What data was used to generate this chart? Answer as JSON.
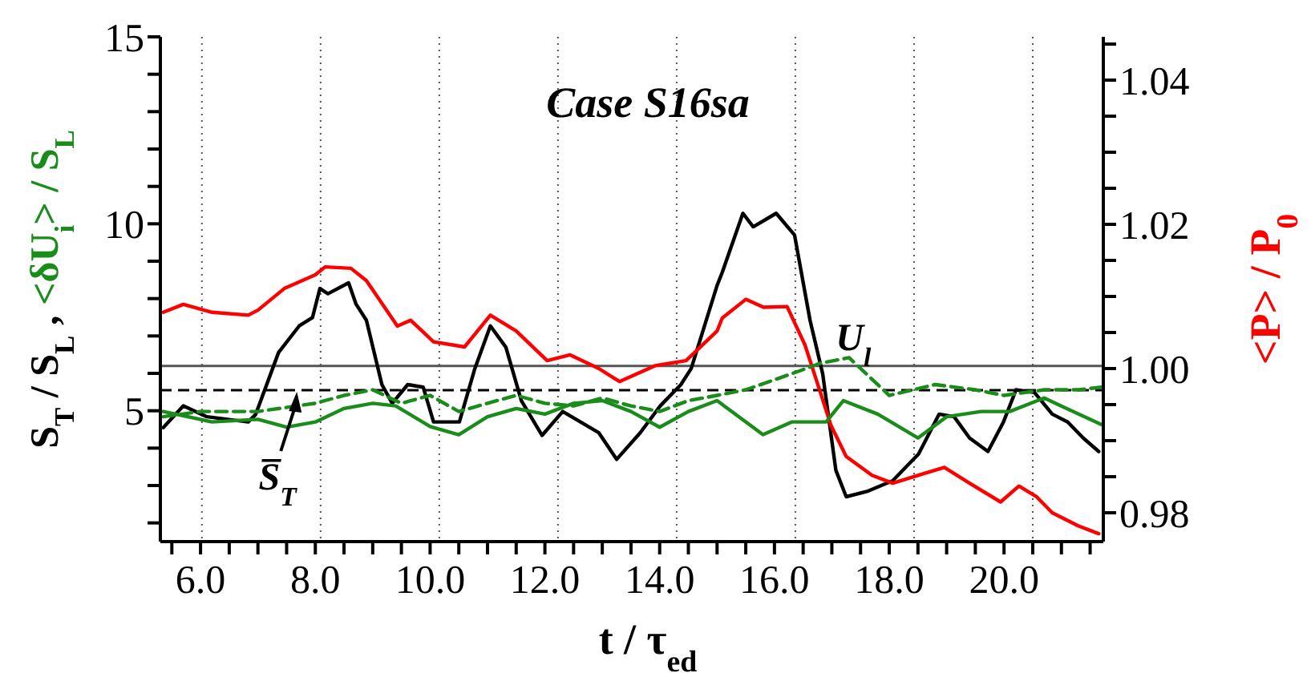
{
  "chart_data": {
    "type": "line",
    "title": "Case S16sa",
    "xlabel": "t / τ$_{ed}$",
    "ylabel": "S$_{T}$ / S$_{L}$ , <δU$_{i}$> / S$_{L}$",
    "y2label": "<P> / P$_{0}$",
    "xlim": [
      5.3,
      21.73
    ],
    "ylim": [
      1.5,
      15
    ],
    "y2lim": [
      0.976,
      1.046
    ],
    "xticks": [
      {
        "value": 5.5,
        "label": null
      },
      {
        "value": 6,
        "label": "6.0"
      },
      {
        "value": 6.5,
        "label": null
      },
      {
        "value": 7,
        "label": null
      },
      {
        "value": 7.5,
        "label": null
      },
      {
        "value": 8,
        "label": "8.0"
      },
      {
        "value": 8.5,
        "label": null
      },
      {
        "value": 9,
        "label": null
      },
      {
        "value": 9.5,
        "label": null
      },
      {
        "value": 10,
        "label": "10.0"
      },
      {
        "value": 10.5,
        "label": null
      },
      {
        "value": 11,
        "label": null
      },
      {
        "value": 11.5,
        "label": null
      },
      {
        "value": 12,
        "label": "12.0"
      },
      {
        "value": 12.5,
        "label": null
      },
      {
        "value": 13,
        "label": null
      },
      {
        "value": 13.5,
        "label": null
      },
      {
        "value": 14,
        "label": "14.0"
      },
      {
        "value": 14.5,
        "label": null
      },
      {
        "value": 15,
        "label": null
      },
      {
        "value": 15.5,
        "label": null
      },
      {
        "value": 16,
        "label": "16.0"
      },
      {
        "value": 16.5,
        "label": null
      },
      {
        "value": 17,
        "label": null
      },
      {
        "value": 17.5,
        "label": null
      },
      {
        "value": 18,
        "label": "18.0"
      },
      {
        "value": 18.5,
        "label": null
      },
      {
        "value": 19,
        "label": null
      },
      {
        "value": 19.5,
        "label": null
      },
      {
        "value": 20,
        "label": "20.0"
      },
      {
        "value": 20.5,
        "label": null
      },
      {
        "value": 21,
        "label": null
      },
      {
        "value": 21.5,
        "label": null
      }
    ],
    "yticks": [
      {
        "value": 2,
        "label": null
      },
      {
        "value": 3,
        "label": null
      },
      {
        "value": 4,
        "label": null
      },
      5,
      {
        "value": 6,
        "label": null
      },
      {
        "value": 7,
        "label": null
      },
      {
        "value": 8,
        "label": null
      },
      {
        "value": 9,
        "label": null
      },
      10,
      {
        "value": 11,
        "label": null
      },
      {
        "value": 12,
        "label": null
      },
      {
        "value": 13,
        "label": null
      },
      {
        "value": 14,
        "label": null
      },
      15
    ],
    "y2ticks": [
      {
        "value": 0.98,
        "label": "0.98"
      },
      {
        "value": 0.985,
        "label": null
      },
      {
        "value": 0.99,
        "label": null
      },
      {
        "value": 0.995,
        "label": null
      },
      {
        "value": 1.0,
        "label": "1.00"
      },
      {
        "value": 1.005,
        "label": null
      },
      {
        "value": 1.01,
        "label": null
      },
      {
        "value": 1.015,
        "label": null
      },
      {
        "value": 1.02,
        "label": "1.02"
      },
      {
        "value": 1.025,
        "label": null
      },
      {
        "value": 1.03,
        "label": null
      },
      {
        "value": 1.035,
        "label": null
      },
      {
        "value": 1.04,
        "label": "1.04"
      },
      {
        "value": 1.045,
        "label": null
      }
    ],
    "grid": "x",
    "legend": false,
    "marker": "none",
    "ref_lines": [
      {
        "axis": "y",
        "value": 6.2,
        "label": "U$_{l}$",
        "color": "#555555",
        "line_style": "solid"
      },
      {
        "axis": "y",
        "value": 5.55,
        "color": "#000000",
        "line_style": "dashed"
      }
    ],
    "annotations": [
      {
        "text": "S̅$_{T}$",
        "x": 7.6,
        "y": 5.55
      }
    ],
    "series": [
      {
        "color": "#000000",
        "x": [
          5.35,
          5.7,
          6.11,
          6.83,
          6.96,
          7.36,
          7.72,
          7.95,
          8.08,
          8.22,
          8.58,
          8.71,
          8.89,
          9.16,
          9.34,
          9.61,
          9.88,
          10.06,
          10.51,
          10.78,
          11.05,
          11.32,
          11.59,
          11.95,
          12.31,
          12.94,
          13.25,
          13.66,
          14.01,
          14.37,
          14.55,
          15.0,
          15.09,
          15.45,
          15.63,
          16.03,
          16.35,
          16.62,
          16.84,
          17.07,
          17.25,
          17.61,
          18.06,
          18.51,
          18.87,
          19.13,
          19.4,
          19.72,
          19.99,
          20.21,
          20.53,
          20.84,
          21.11,
          21.38,
          21.65
        ],
        "values": [
          4.55,
          5.13,
          4.84,
          4.7,
          4.9,
          6.56,
          7.27,
          7.49,
          8.27,
          8.13,
          8.42,
          7.85,
          7.42,
          5.7,
          5.2,
          5.7,
          5.63,
          4.7,
          4.7,
          6.13,
          7.27,
          6.7,
          5.27,
          4.34,
          4.98,
          4.41,
          3.7,
          4.41,
          5.13,
          5.7,
          6.13,
          8.35,
          8.7,
          10.28,
          9.92,
          10.28,
          9.7,
          7.42,
          5.99,
          3.41,
          2.7,
          2.84,
          3.13,
          3.84,
          4.91,
          4.84,
          4.27,
          3.91,
          4.7,
          5.56,
          5.49,
          4.91,
          4.7,
          4.27,
          3.91
        ]
      },
      {
        "color": "#ff0000",
        "axis": "y2",
        "x": [
          5.35,
          5.7,
          6.2,
          6.83,
          7.0,
          7.46,
          8.0,
          8.17,
          8.62,
          8.89,
          9.43,
          9.66,
          10.06,
          10.6,
          11.05,
          11.5,
          12.04,
          12.44,
          12.94,
          13.3,
          13.92,
          14.46,
          15.0,
          15.09,
          15.5,
          15.81,
          16.22,
          16.53,
          16.8,
          16.98,
          17.25,
          17.7,
          18.06,
          18.51,
          18.96,
          19.4,
          19.94,
          20.26,
          20.57,
          20.84,
          21.29,
          21.65
        ],
        "values": [
          1.0078,
          1.0089,
          1.0078,
          1.0074,
          1.0081,
          1.0111,
          1.013,
          1.0141,
          1.0139,
          1.0122,
          1.0059,
          1.0067,
          1.0037,
          1.003,
          1.0074,
          1.0052,
          1.0011,
          1.0019,
          1.0,
          0.9982,
          1.0004,
          1.0011,
          1.0052,
          1.007,
          1.0096,
          1.0085,
          1.0086,
          1.0033,
          0.9967,
          0.9922,
          0.9878,
          0.9852,
          0.9841,
          0.9852,
          0.9863,
          0.9841,
          0.9815,
          0.9837,
          0.9822,
          0.98,
          0.9782,
          0.9771
        ]
      },
      {
        "color": "#1a8c1a",
        "x": [
          5.35,
          6.2,
          7.0,
          7.5,
          8.0,
          8.5,
          9.0,
          9.4,
          10.0,
          10.5,
          11.0,
          11.5,
          12.0,
          12.5,
          13.0,
          13.5,
          14.0,
          14.5,
          15.0,
          15.8,
          16.3,
          16.9,
          17.2,
          17.8,
          18.5,
          19.0,
          19.6,
          20.1,
          20.7,
          21.2,
          21.7
        ],
        "values": [
          4.98,
          4.7,
          4.77,
          4.56,
          4.7,
          5.06,
          5.2,
          5.13,
          4.58,
          4.36,
          4.84,
          5.06,
          4.91,
          5.2,
          5.27,
          4.98,
          4.56,
          4.98,
          5.27,
          4.36,
          4.7,
          4.7,
          5.27,
          4.91,
          4.27,
          4.84,
          4.98,
          4.98,
          5.34,
          4.98,
          4.63
        ]
      },
      {
        "color": "#1a8c1a",
        "line_style": "dashed",
        "x": [
          5.35,
          6.0,
          7.0,
          8.0,
          8.5,
          9.0,
          9.5,
          10.0,
          10.5,
          11.0,
          11.5,
          12.0,
          12.5,
          13.0,
          13.5,
          14.0,
          14.5,
          15.0,
          15.5,
          16.3,
          16.8,
          17.3,
          18.0,
          18.8,
          19.5,
          20.0,
          20.7,
          21.3,
          21.7
        ],
        "values": [
          4.84,
          4.98,
          4.98,
          5.2,
          5.41,
          5.56,
          5.2,
          5.41,
          4.98,
          5.2,
          5.41,
          5.2,
          5.13,
          5.34,
          5.13,
          4.98,
          5.27,
          5.41,
          5.56,
          5.99,
          6.27,
          6.42,
          5.41,
          5.7,
          5.56,
          5.41,
          5.56,
          5.56,
          5.63
        ]
      }
    ]
  }
}
